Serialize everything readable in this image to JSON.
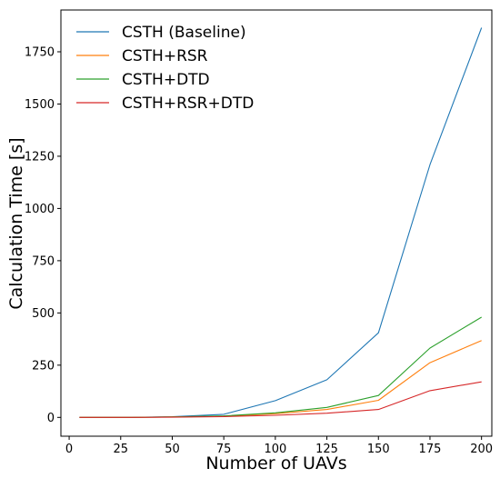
{
  "chart_data": {
    "type": "line",
    "title": "",
    "xlabel": "Number of UAVs",
    "ylabel": "Calculation Time [s]",
    "xlim": [
      -4,
      205
    ],
    "ylim": [
      -90,
      1950
    ],
    "xticks": [
      0,
      25,
      50,
      75,
      100,
      125,
      150,
      175,
      200
    ],
    "yticks": [
      0,
      250,
      500,
      750,
      1000,
      1250,
      1500,
      1750
    ],
    "grid": false,
    "legend_position": "top-left",
    "x": [
      5,
      30,
      50,
      75,
      100,
      125,
      150,
      175,
      200
    ],
    "series": [
      {
        "name": "CSTH (Baseline)",
        "color": "#1f77b4",
        "values": [
          0,
          0,
          3,
          15,
          80,
          180,
          405,
          1210,
          1865
        ]
      },
      {
        "name": "CSTH+RSR",
        "color": "#ff7f0e",
        "values": [
          0,
          0,
          2,
          6,
          18,
          38,
          82,
          262,
          368
        ]
      },
      {
        "name": "CSTH+DTD",
        "color": "#2ca02c",
        "values": [
          0,
          0,
          2,
          7,
          22,
          48,
          105,
          332,
          480
        ]
      },
      {
        "name": "CSTH+RSR+DTD",
        "color": "#d62728",
        "values": [
          0,
          0,
          1,
          4,
          10,
          20,
          38,
          128,
          170
        ]
      }
    ]
  }
}
